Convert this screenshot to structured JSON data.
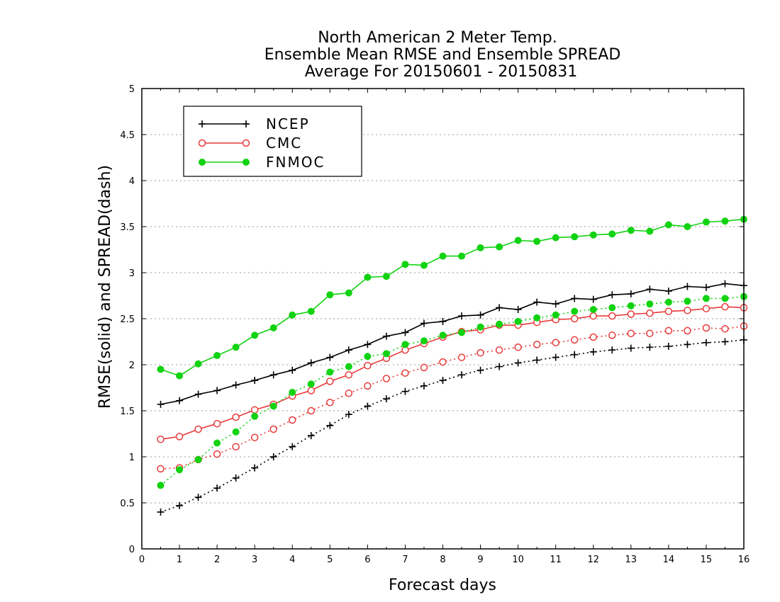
{
  "chart_data": {
    "type": "line",
    "title": [
      "North American 2 Meter Temp.",
      "Ensemble Mean RMSE and Ensemble SPREAD",
      "Average For 20150601 - 20150831"
    ],
    "xlabel": "Forecast days",
    "ylabel": "RMSE(solid) and SPREAD(dash)",
    "xlim": [
      0,
      16
    ],
    "ylim": [
      0,
      5
    ],
    "xticks": [
      "0",
      "1",
      "2",
      "3",
      "4",
      "5",
      "6",
      "7",
      "8",
      "9",
      "10",
      "11",
      "12",
      "13",
      "14",
      "15",
      "16"
    ],
    "yticks": [
      "0",
      "0.5",
      "1",
      "1.5",
      "2",
      "2.5",
      "3",
      "3.5",
      "4",
      "4.5",
      "5"
    ],
    "grid": true,
    "legend_position": "top-left",
    "x": [
      0.5,
      1,
      1.5,
      2,
      2.5,
      3,
      3.5,
      4,
      4.5,
      5,
      5.5,
      6,
      6.5,
      7,
      7.5,
      8,
      8.5,
      9,
      9.5,
      10,
      10.5,
      11,
      11.5,
      12,
      12.5,
      13,
      13.5,
      14,
      14.5,
      15,
      15.5,
      16
    ],
    "series": [
      {
        "name": "NCEP",
        "metric": "RMSE",
        "style": "solid",
        "marker": "plus",
        "color": "#000000",
        "values": [
          1.57,
          1.61,
          1.68,
          1.72,
          1.78,
          1.83,
          1.89,
          1.94,
          2.02,
          2.08,
          2.16,
          2.22,
          2.31,
          2.35,
          2.45,
          2.47,
          2.53,
          2.54,
          2.62,
          2.6,
          2.68,
          2.66,
          2.72,
          2.71,
          2.76,
          2.77,
          2.82,
          2.8,
          2.85,
          2.84,
          2.88,
          2.86
        ]
      },
      {
        "name": "NCEP",
        "metric": "SPREAD",
        "style": "dotted",
        "marker": "plus",
        "color": "#000000",
        "values": [
          0.4,
          0.47,
          0.56,
          0.66,
          0.77,
          0.88,
          1.0,
          1.11,
          1.23,
          1.34,
          1.46,
          1.55,
          1.63,
          1.71,
          1.77,
          1.83,
          1.89,
          1.94,
          1.98,
          2.02,
          2.05,
          2.08,
          2.11,
          2.14,
          2.16,
          2.18,
          2.19,
          2.2,
          2.22,
          2.24,
          2.25,
          2.27
        ]
      },
      {
        "name": "CMC",
        "metric": "RMSE",
        "style": "solid",
        "marker": "open-circle",
        "color": "#e83a3a",
        "values": [
          1.19,
          1.22,
          1.3,
          1.36,
          1.43,
          1.51,
          1.57,
          1.66,
          1.72,
          1.82,
          1.89,
          1.99,
          2.07,
          2.16,
          2.23,
          2.3,
          2.36,
          2.38,
          2.43,
          2.43,
          2.46,
          2.49,
          2.5,
          2.53,
          2.53,
          2.55,
          2.56,
          2.58,
          2.59,
          2.61,
          2.63,
          2.62
        ]
      },
      {
        "name": "CMC",
        "metric": "SPREAD",
        "style": "dotted",
        "marker": "open-circle",
        "color": "#e83a3a",
        "values": [
          0.87,
          0.88,
          0.97,
          1.03,
          1.11,
          1.21,
          1.3,
          1.4,
          1.5,
          1.59,
          1.69,
          1.77,
          1.85,
          1.91,
          1.97,
          2.03,
          2.08,
          2.13,
          2.16,
          2.19,
          2.22,
          2.24,
          2.27,
          2.3,
          2.32,
          2.34,
          2.34,
          2.37,
          2.37,
          2.4,
          2.39,
          2.42
        ]
      },
      {
        "name": "FNMOC",
        "metric": "RMSE",
        "style": "solid",
        "marker": "filled-circle",
        "color": "#11d311",
        "values": [
          1.95,
          1.88,
          2.01,
          2.1,
          2.19,
          2.32,
          2.4,
          2.54,
          2.58,
          2.76,
          2.78,
          2.95,
          2.96,
          3.09,
          3.08,
          3.18,
          3.18,
          3.27,
          3.28,
          3.35,
          3.34,
          3.38,
          3.39,
          3.41,
          3.42,
          3.46,
          3.45,
          3.52,
          3.5,
          3.55,
          3.56,
          3.58
        ]
      },
      {
        "name": "FNMOC",
        "metric": "SPREAD",
        "style": "dotted",
        "marker": "filled-circle",
        "color": "#11d311",
        "values": [
          0.69,
          0.86,
          0.97,
          1.15,
          1.27,
          1.44,
          1.55,
          1.7,
          1.79,
          1.92,
          1.98,
          2.09,
          2.12,
          2.22,
          2.26,
          2.32,
          2.35,
          2.41,
          2.44,
          2.47,
          2.51,
          2.54,
          2.58,
          2.6,
          2.62,
          2.64,
          2.66,
          2.68,
          2.69,
          2.72,
          2.72,
          2.74
        ]
      }
    ],
    "legend": [
      {
        "label": "NCEP",
        "marker": "plus",
        "color": "#000000"
      },
      {
        "label": "CMC",
        "marker": "open-circle",
        "color": "#e83a3a"
      },
      {
        "label": "FNMOC",
        "marker": "filled-circle",
        "color": "#11d311"
      }
    ]
  }
}
